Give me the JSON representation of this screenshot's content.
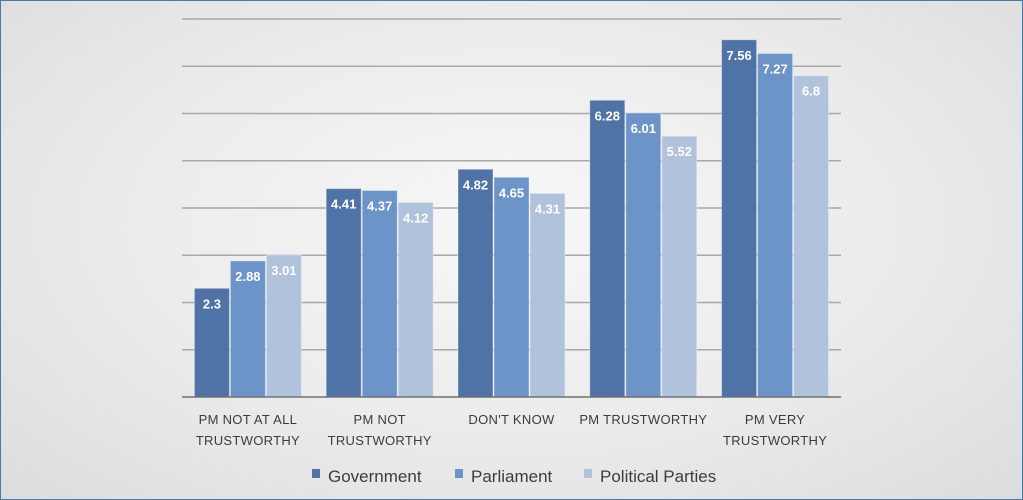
{
  "chart_data": {
    "type": "bar",
    "categories": [
      [
        "PM NOT AT ALL",
        "TRUSTWORTHY"
      ],
      [
        "PM NOT",
        "TRUSTWORTHY"
      ],
      [
        "DON'T KNOW"
      ],
      [
        "PM TRUSTWORTHY"
      ],
      [
        "PM VERY",
        "TRUSTWORTHY"
      ]
    ],
    "series": [
      {
        "name": "Government",
        "values": [
          2.3,
          4.41,
          4.82,
          6.28,
          7.56
        ],
        "labels": [
          "2.3",
          "4.41",
          "4.82",
          "6.28",
          "7.56"
        ]
      },
      {
        "name": "Parliament",
        "values": [
          2.88,
          4.37,
          4.65,
          6.01,
          7.27
        ],
        "labels": [
          "2.88",
          "4.37",
          "4.65",
          "6.01",
          "7.27"
        ]
      },
      {
        "name": "Political Parties",
        "values": [
          3.01,
          4.12,
          4.31,
          5.52,
          6.8
        ],
        "labels": [
          "3.01",
          "4.12",
          "4.31",
          "5.52",
          "6.8"
        ]
      }
    ],
    "colors": [
      "#4f73a6",
      "#6c94c9",
      "#b1c2dd"
    ],
    "ylim": [
      0,
      8
    ],
    "grid": true,
    "legend": "bottom",
    "title": "",
    "xlabel": "",
    "ylabel": ""
  }
}
